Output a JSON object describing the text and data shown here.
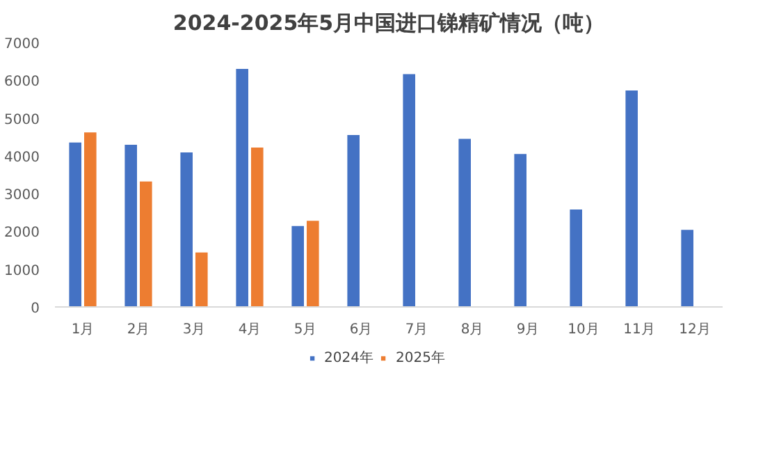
{
  "chart_data": {
    "type": "bar",
    "title": "2024-2025年5月中国进口锑精矿情况（吨）",
    "categories": [
      "1月",
      "2月",
      "3月",
      "4月",
      "5月",
      "6月",
      "7月",
      "8月",
      "9月",
      "10月",
      "11月",
      "12月"
    ],
    "series": [
      {
        "name": "2024年",
        "color": "#4472c4",
        "values": [
          4350,
          4290,
          4090,
          6300,
          2140,
          4550,
          6160,
          4450,
          4050,
          2580,
          5730,
          2040
        ]
      },
      {
        "name": "2025年",
        "color": "#ed7d31",
        "values": [
          4620,
          3320,
          1440,
          4220,
          2280,
          null,
          null,
          null,
          null,
          null,
          null,
          null
        ]
      }
    ],
    "ylim": [
      0,
      7000
    ],
    "yticks": [
      0,
      1000,
      2000,
      3000,
      4000,
      5000,
      6000,
      7000
    ],
    "grid": false,
    "legend": "bottom"
  }
}
